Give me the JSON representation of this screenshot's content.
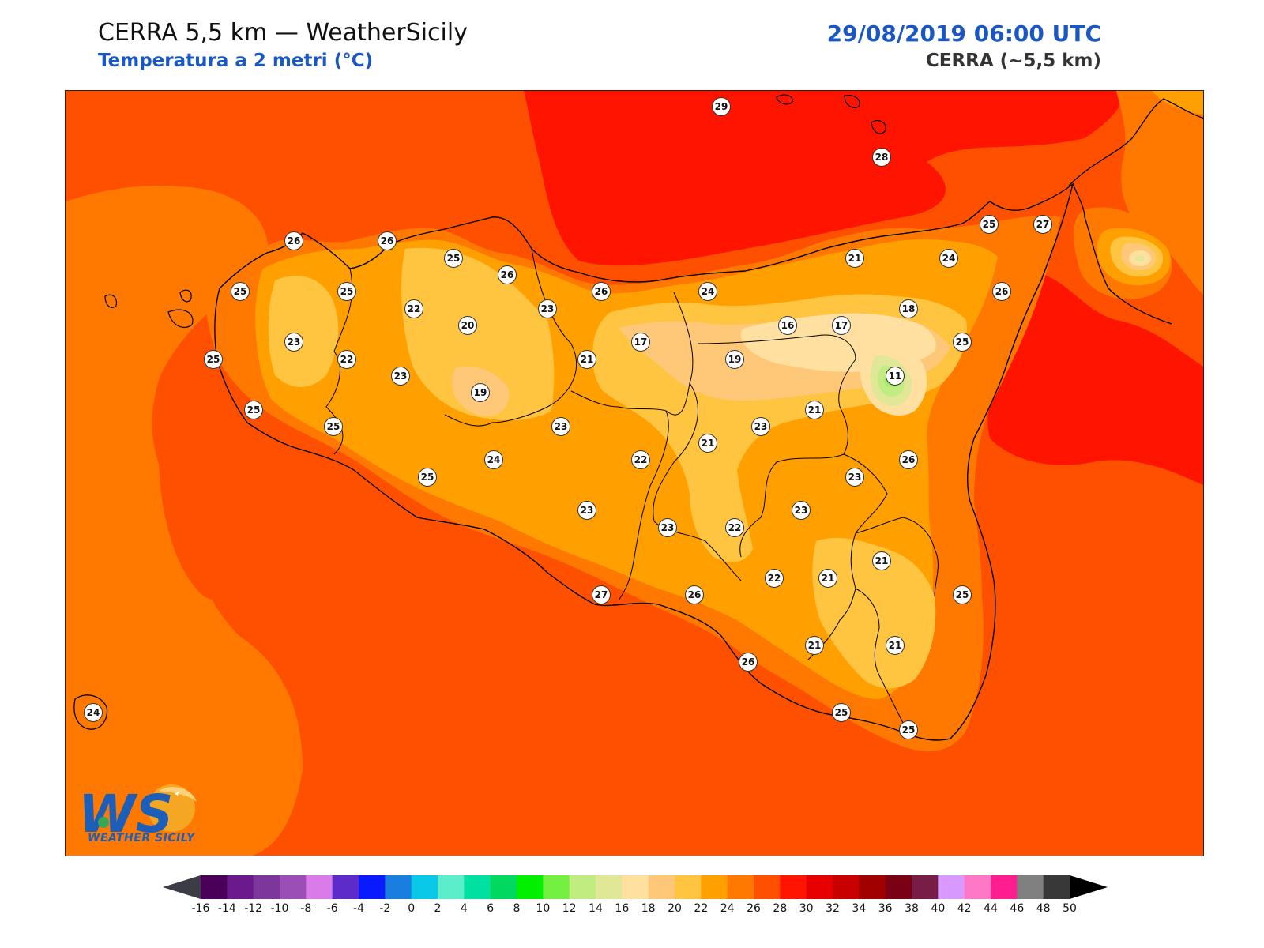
{
  "header": {
    "title": "CERRA 5,5 km — WeatherSicily",
    "subtitle": "Temperatura a 2 metri (°C)",
    "datetime": "29/08/2019 06:00 UTC",
    "model": "CERRA (~5,5 km)"
  },
  "logo": {
    "mark": "WS",
    "wordmark": "WEATHER SICILY"
  },
  "stations": [
    {
      "v": "29"
    },
    {
      "v": "28"
    },
    {
      "v": "26"
    },
    {
      "v": "26"
    },
    {
      "v": "25"
    },
    {
      "v": "26"
    },
    {
      "v": "25"
    },
    {
      "v": "25"
    },
    {
      "v": "22"
    },
    {
      "v": "20"
    },
    {
      "v": "23"
    },
    {
      "v": "26"
    },
    {
      "v": "24"
    },
    {
      "v": "21"
    },
    {
      "v": "24"
    },
    {
      "v": "25"
    },
    {
      "v": "27"
    },
    {
      "v": "23"
    },
    {
      "v": "22"
    },
    {
      "v": "25"
    },
    {
      "v": "23"
    },
    {
      "v": "19"
    },
    {
      "v": "21"
    },
    {
      "v": "17"
    },
    {
      "v": "19"
    },
    {
      "v": "16"
    },
    {
      "v": "17"
    },
    {
      "v": "18"
    },
    {
      "v": "26"
    },
    {
      "v": "25"
    },
    {
      "v": "11"
    },
    {
      "v": "25"
    },
    {
      "v": "25"
    },
    {
      "v": "24"
    },
    {
      "v": "23"
    },
    {
      "v": "22"
    },
    {
      "v": "21"
    },
    {
      "v": "23"
    },
    {
      "v": "21"
    },
    {
      "v": "26"
    },
    {
      "v": "23"
    },
    {
      "v": "25"
    },
    {
      "v": "23"
    },
    {
      "v": "23"
    },
    {
      "v": "22"
    },
    {
      "v": "23"
    },
    {
      "v": "22"
    },
    {
      "v": "21"
    },
    {
      "v": "21"
    },
    {
      "v": "25"
    },
    {
      "v": "27"
    },
    {
      "v": "26"
    },
    {
      "v": "26"
    },
    {
      "v": "21"
    },
    {
      "v": "21"
    },
    {
      "v": "25"
    },
    {
      "v": "25"
    },
    {
      "v": "24"
    }
  ],
  "colorbar": {
    "ticks": [
      "-16",
      "-14",
      "-12",
      "-10",
      "-8",
      "-6",
      "-4",
      "-2",
      "0",
      "2",
      "4",
      "6",
      "8",
      "10",
      "12",
      "14",
      "16",
      "18",
      "20",
      "22",
      "24",
      "26",
      "28",
      "30",
      "32",
      "34",
      "36",
      "38",
      "40",
      "42",
      "44",
      "46",
      "48",
      "50"
    ],
    "colors": [
      "#4a0058",
      "#6a1a8c",
      "#7d3699",
      "#9b4eb5",
      "#d97ce8",
      "#5c2bc9",
      "#0a1aff",
      "#1a7de0",
      "#0ac8e8",
      "#5ceecb",
      "#00e0a0",
      "#00d860",
      "#00f000",
      "#74f040",
      "#c0ec80",
      "#e0e898",
      "#ffe0a0",
      "#ffc878",
      "#ffc440",
      "#ffa000",
      "#ff7800",
      "#ff5000",
      "#ff1400",
      "#e60000",
      "#c80000",
      "#a00000",
      "#7a0014",
      "#781e46",
      "#d89aff",
      "#ff78c8",
      "#ff1e90",
      "#808080",
      "#383838"
    ],
    "under_color": "#3c3c46",
    "over_color": "#000000"
  }
}
